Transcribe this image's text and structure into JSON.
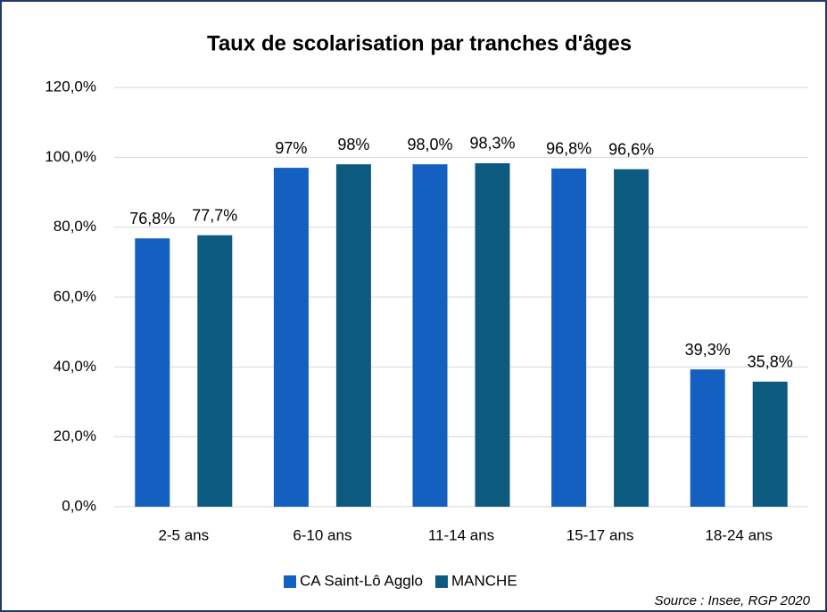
{
  "chart_data": {
    "type": "bar",
    "title": "Taux de scolarisation par tranches d'âges",
    "categories": [
      "2-5 ans",
      "6-10 ans",
      "11-14 ans",
      "15-17 ans",
      "18-24 ans"
    ],
    "series": [
      {
        "name": "CA Saint-Lô Agglo",
        "color": "#1360c0",
        "values": [
          76.8,
          97,
          98.0,
          96.8,
          39.3
        ],
        "value_labels": [
          "76,8%",
          "97%",
          "98,0%",
          "96,8%",
          "39,3%"
        ]
      },
      {
        "name": "MANCHE",
        "color": "#0c5a80",
        "values": [
          77.7,
          98,
          98.3,
          96.6,
          35.8
        ],
        "value_labels": [
          "77,7%",
          "98%",
          "98,3%",
          "96,6%",
          "35,8%"
        ]
      }
    ],
    "ylim": [
      0,
      120
    ],
    "yticks": [
      {
        "value": 0,
        "label": "0,0%"
      },
      {
        "value": 20,
        "label": "20,0%"
      },
      {
        "value": 40,
        "label": "40,0%"
      },
      {
        "value": 60,
        "label": "60,0%"
      },
      {
        "value": 80,
        "label": "80,0%"
      },
      {
        "value": 100,
        "label": "100,0%"
      },
      {
        "value": 120,
        "label": "120,0%"
      }
    ],
    "grid": true,
    "legend": "bottom",
    "source": "Source : Insee, RGP 2020"
  }
}
